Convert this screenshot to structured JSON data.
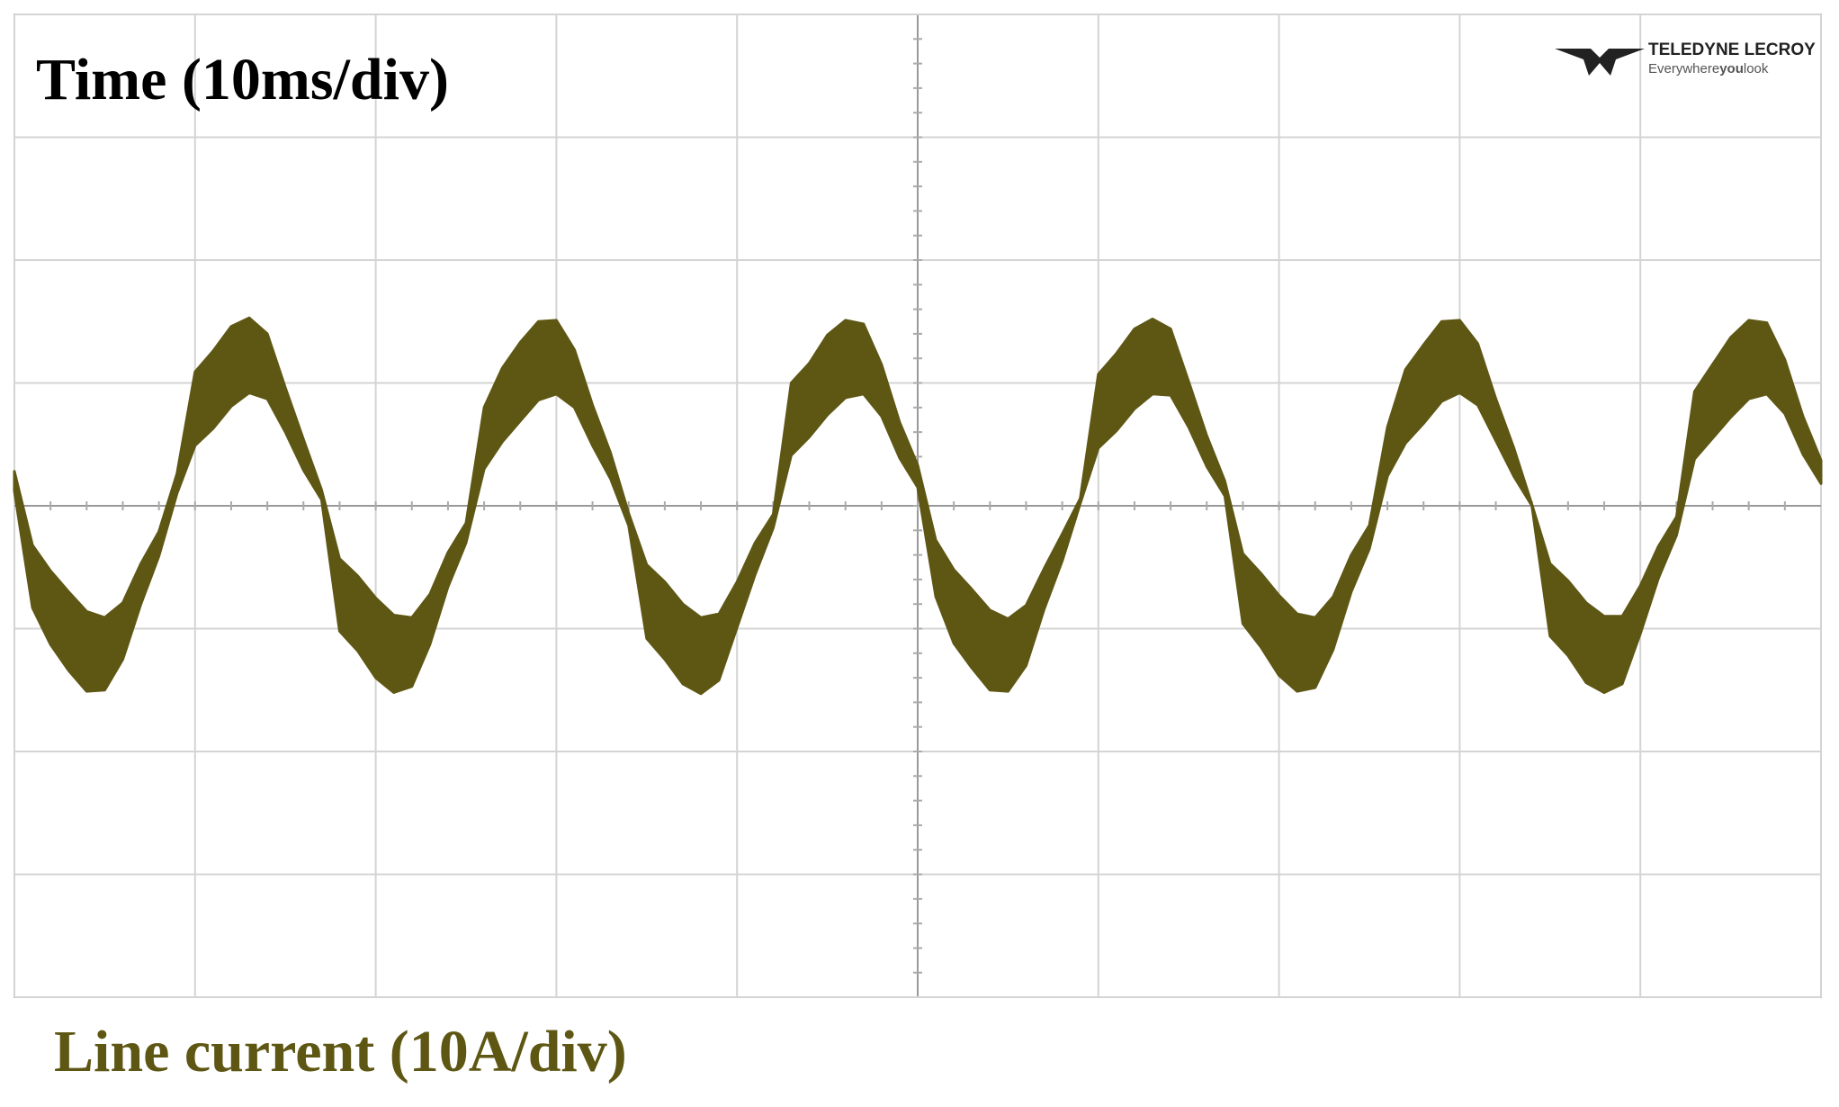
{
  "chart_data": {
    "type": "band",
    "title": "Time (10ms/div)",
    "y_label": "Line current (10A/div)",
    "logo": {
      "name": "TELEDYNE LECROY",
      "tagline": [
        "Everywhere",
        "you",
        "look"
      ]
    },
    "color": "#5e5714",
    "x": [
      0,
      1,
      2,
      3,
      4,
      5,
      6,
      7,
      8,
      9,
      10,
      11,
      12,
      13,
      14,
      15,
      16,
      17,
      18,
      19,
      20,
      21,
      22,
      23,
      24,
      25,
      26,
      27,
      28,
      29,
      30,
      31,
      32,
      33,
      34,
      35,
      36,
      37,
      38,
      39,
      40,
      41,
      42,
      43,
      44,
      45,
      46,
      47,
      48,
      49,
      50,
      51,
      52,
      53,
      54,
      55,
      56,
      57,
      58,
      59,
      60,
      61,
      62,
      63,
      64,
      65,
      66,
      67,
      68,
      69,
      70,
      71,
      72,
      73,
      74,
      75,
      76,
      77,
      78,
      79,
      80,
      81,
      82,
      83,
      84,
      85,
      86,
      87,
      88,
      89,
      90,
      91,
      92,
      93,
      94,
      95,
      96,
      97,
      98,
      99,
      100
    ],
    "upper": [
      2.8,
      -3.2,
      -5.3,
      -7.0,
      -8.6,
      -9.1,
      -7.9,
      -4.7,
      -2.1,
      2.6,
      10.9,
      12.6,
      14.6,
      15.3,
      14.0,
      9.6,
      5.4,
      1.3,
      -4.3,
      -5.7,
      -7.5,
      -8.9,
      -9.1,
      -7.2,
      -3.8,
      -1.4,
      8.0,
      11.2,
      13.3,
      15.0,
      15.1,
      12.7,
      8.2,
      4.3,
      -0.6,
      -4.8,
      -6.2,
      -8.0,
      -9.1,
      -8.8,
      -6.2,
      -3.0,
      -0.7,
      10.0,
      11.6,
      13.9,
      15.1,
      14.8,
      11.5,
      6.8,
      3.3,
      -2.8,
      -5.2,
      -6.8,
      -8.5,
      -9.2,
      -8.1,
      -5.1,
      -2.3,
      0.6,
      10.7,
      12.4,
      14.4,
      15.2,
      14.4,
      10.1,
      5.7,
      2.0,
      -3.9,
      -5.5,
      -7.3,
      -8.8,
      -9.1,
      -7.4,
      -4.0,
      -1.6,
      6.4,
      11.1,
      13.1,
      15.0,
      15.1,
      13.2,
      8.7,
      4.7,
      0.1,
      -4.7,
      -6.1,
      -7.9,
      -9.0,
      -9.0,
      -6.5,
      -3.3,
      -0.9,
      9.3,
      11.5,
      13.7,
      15.1,
      14.9,
      11.9,
      7.3,
      3.7
    ],
    "lower": [
      1.2,
      -8.3,
      -11.3,
      -13.4,
      -15.1,
      -15.0,
      -12.5,
      -8.0,
      -4.1,
      1.0,
      4.9,
      6.3,
      8.1,
      9.2,
      8.7,
      6.0,
      2.9,
      0.5,
      -10.2,
      -11.8,
      -14.0,
      -15.2,
      -14.7,
      -11.3,
      -6.6,
      -3.0,
      3.0,
      5.2,
      6.9,
      8.6,
      9.1,
      8.0,
      4.9,
      2.2,
      -1.6,
      -10.8,
      -12.5,
      -14.5,
      -15.3,
      -14.2,
      -9.9,
      -5.6,
      -1.8,
      4.1,
      5.6,
      7.4,
      8.8,
      9.1,
      7.3,
      3.9,
      1.5,
      -7.4,
      -11.2,
      -13.2,
      -15.0,
      -15.1,
      -13.0,
      -8.4,
      -4.5,
      0.2,
      4.7,
      6.1,
      7.9,
      9.1,
      9.0,
      6.4,
      3.2,
      0.8,
      -9.6,
      -11.5,
      -13.8,
      -15.1,
      -14.8,
      -11.7,
      -7.0,
      -3.5,
      2.4,
      5.1,
      6.7,
      8.5,
      9.2,
      8.2,
      5.3,
      2.4,
      0,
      -10.6,
      -12.2,
      -14.4,
      -15.2,
      -14.5,
      -10.4,
      -5.9,
      -2.4,
      3.8,
      5.5,
      7.2,
      8.7,
      9.1,
      7.5,
      4.2,
      1.8
    ],
    "xlim": [
      0,
      100
    ],
    "ylim": [
      -40,
      40
    ],
    "xticks": [
      0,
      10,
      20,
      30,
      40,
      50,
      60,
      70,
      80,
      90,
      100
    ],
    "yticks": [
      -40,
      -30,
      -20,
      -10,
      0,
      10,
      20,
      30,
      40
    ],
    "grid": true
  }
}
